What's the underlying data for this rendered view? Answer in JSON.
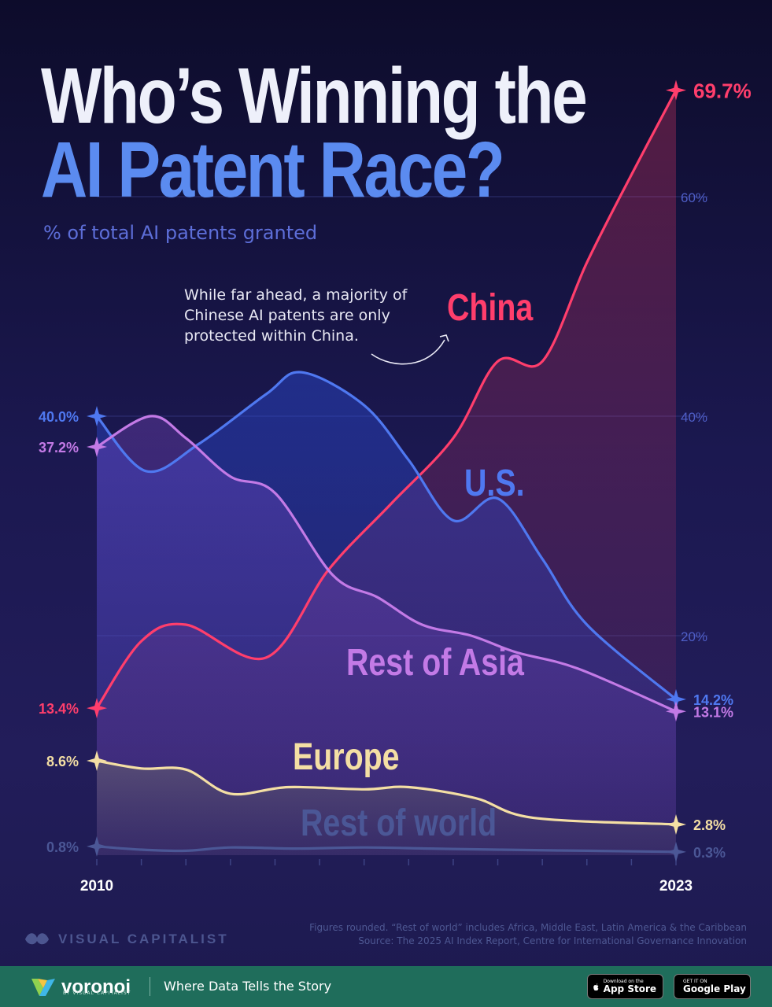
{
  "header": {
    "title_line1": "Who’s Winning the",
    "title_line2": "AI Patent Race?",
    "subtitle": "% of total AI patents granted"
  },
  "annotation": {
    "line1": "While far ahead, a majority of",
    "line2": "Chinese AI patents are only",
    "line3": "protected within China."
  },
  "colors": {
    "china": "#ff3e6c",
    "us": "#4f78f0",
    "rest_of_asia": "#c37ae6",
    "europe": "#f4dfa4",
    "rest_of_world": "#4b5796",
    "title_blue": "#5b8bf0",
    "background": "#161340"
  },
  "chart_data": {
    "type": "line",
    "title": "Who’s Winning the AI Patent Race?",
    "subtitle": "% of total AI patents granted",
    "x_tick_labels": [
      "2010",
      "2023"
    ],
    "x": [
      2010,
      2011,
      2012,
      2013,
      2014,
      2015,
      2016,
      2017,
      2018,
      2019,
      2020,
      2021,
      2022,
      2023
    ],
    "y_tick_labels": [
      "20%",
      "40%",
      "60%"
    ],
    "y_ticks": [
      20,
      40,
      60
    ],
    "ylim": [
      0,
      72
    ],
    "grid": true,
    "series": [
      {
        "name": "China",
        "values": [
          13.4,
          19.5,
          21.0,
          18.0,
          26.0,
          32.0,
          38.0,
          45.0,
          45.0,
          54.0,
          62.0,
          69.7
        ],
        "x": [
          2010,
          2011,
          2012,
          2013.8,
          2015.2,
          2016.6,
          2018,
          2019,
          2020,
          2021,
          2022,
          2023
        ],
        "start_label": "13.4%",
        "end_label": "69.7%"
      },
      {
        "name": "U.S.",
        "values": [
          40.0,
          35.0,
          37.5,
          42.0,
          44.0,
          41.0,
          36.0,
          30.5,
          32.5,
          27.0,
          21.0,
          14.2
        ],
        "x": [
          2010,
          2011.1,
          2012.3,
          2013.8,
          2014.6,
          2016,
          2017,
          2018,
          2019,
          2020,
          2021,
          2023
        ],
        "start_label": "40.0%",
        "end_label": "14.2%"
      },
      {
        "name": "Rest of Asia",
        "values": [
          37.2,
          40.0,
          38.0,
          34.5,
          33.0,
          25.5,
          23.5,
          21.0,
          20.0,
          18.5,
          17.0,
          13.1
        ],
        "x": [
          2010,
          2011.2,
          2012,
          2013,
          2014,
          2015.3,
          2016.3,
          2017.3,
          2018.4,
          2019.4,
          2020.8,
          2023
        ],
        "start_label": "37.2%",
        "end_label": "13.1%"
      },
      {
        "name": "Europe",
        "values": [
          8.6,
          7.9,
          7.8,
          5.6,
          6.2,
          6.0,
          6.2,
          5.2,
          3.4,
          2.8
        ],
        "x": [
          2010,
          2011,
          2012,
          2013,
          2014.3,
          2016,
          2017,
          2018.5,
          2019.8,
          2023
        ],
        "start_label": "8.6%",
        "end_label": "2.8%"
      },
      {
        "name": "Rest of world",
        "values": [
          0.8,
          0.5,
          0.4,
          0.7,
          0.6,
          0.7,
          0.6,
          0.5,
          0.4,
          0.3
        ],
        "x": [
          2010,
          2011,
          2012,
          2013,
          2014.5,
          2016,
          2017.5,
          2019,
          2021,
          2023
        ],
        "start_label": "0.8%",
        "end_label": "0.3%"
      }
    ]
  },
  "footer": {
    "note_line1": "Figures rounded. “Rest of world” includes Africa, Middle East, Latin America & the Caribbean",
    "note_line2": "Source: The 2025 AI Index Report, Centre for International Governance Innovation",
    "brand": "VISUAL CAPITALIST"
  },
  "bottom_bar": {
    "logo_text": "voronoi",
    "logo_sub": "BY VISUAL CAPITALIST",
    "tagline": "Where Data Tells the Story",
    "app_store_small": "Download on the",
    "app_store_big": "App Store",
    "google_play_small": "GET IT ON",
    "google_play_big": "Google Play"
  }
}
